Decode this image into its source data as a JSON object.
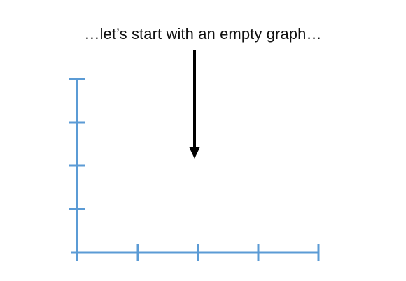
{
  "caption": "…let’s start with an empty graph…",
  "colors": {
    "axis": "#5b9bd5",
    "arrow": "#000000",
    "text": "#111111"
  },
  "graph": {
    "y_ticks": 5,
    "x_ticks": 5
  }
}
